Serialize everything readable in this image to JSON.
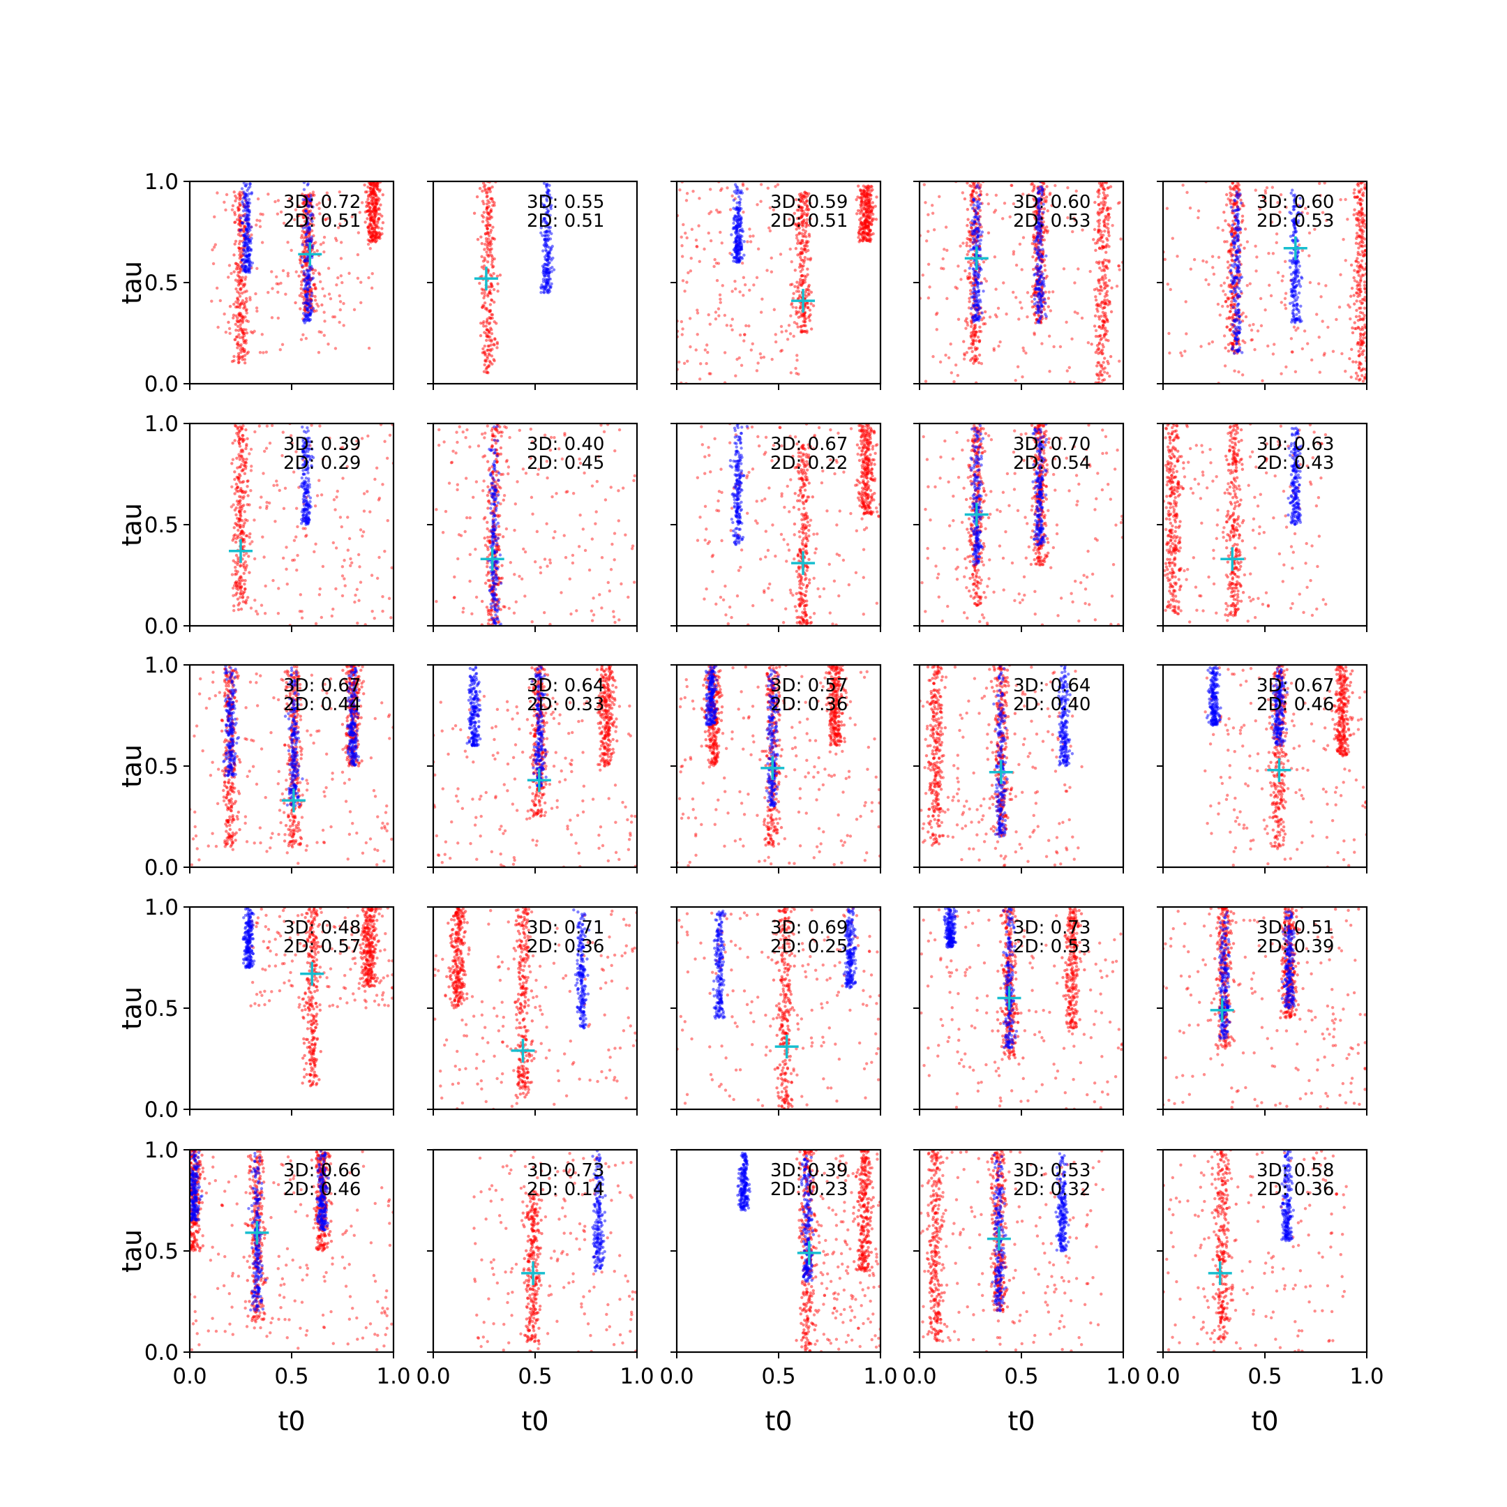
{
  "chart_data": {
    "type": "scatter",
    "layout": "5x5 grid of subplots, shared axes",
    "xlabel": "t0",
    "ylabel": "tau",
    "xlim": [
      0,
      1
    ],
    "ylim": [
      0,
      1
    ],
    "xticks": [
      "0.0",
      "0.5",
      "1.0"
    ],
    "yticks": [
      "0.0",
      "0.5",
      "1.0"
    ],
    "grid": false,
    "colors": {
      "red_points": "#ff0000",
      "blue_points": "#0000ff",
      "marker": "#17becf"
    },
    "panels": [
      {
        "score3d": "3D: 0.72",
        "score2d": "2D: 0.51",
        "marker": [
          0.59,
          0.64
        ],
        "red": [
          [
            0.58,
            0.35,
            0.95
          ],
          [
            0.25,
            0.1,
            0.95
          ],
          [
            0.9,
            0.7,
            1.0
          ]
        ],
        "blue": [
          [
            0.28,
            0.55,
            1.0
          ],
          [
            0.58,
            0.3,
            1.0
          ]
        ],
        "scatter_red": [
          [
            0.1,
            0.9,
            0.15,
            0.95
          ]
        ]
      },
      {
        "score3d": "3D: 0.55",
        "score2d": "2D: 0.51",
        "marker": [
          0.26,
          0.52
        ],
        "red": [
          [
            0.27,
            0.05,
            1.0
          ]
        ],
        "blue": [
          [
            0.56,
            0.45,
            1.0
          ]
        ],
        "scatter_red": []
      },
      {
        "score3d": "3D: 0.59",
        "score2d": "2D: 0.51",
        "marker": [
          0.62,
          0.41
        ],
        "red": [
          [
            0.62,
            0.25,
            0.95
          ],
          [
            0.93,
            0.7,
            0.98
          ]
        ],
        "blue": [
          [
            0.3,
            0.6,
            1.0
          ]
        ],
        "scatter_red": [
          [
            0.0,
            0.6,
            0.0,
            1.0
          ]
        ]
      },
      {
        "score3d": "3D: 0.60",
        "score2d": "2D: 0.53",
        "marker": [
          0.28,
          0.62
        ],
        "red": [
          [
            0.27,
            0.1,
            1.0
          ],
          [
            0.59,
            0.3,
            1.0
          ],
          [
            0.9,
            0.0,
            1.0
          ]
        ],
        "blue": [
          [
            0.28,
            0.3,
            1.0
          ],
          [
            0.59,
            0.3,
            1.0
          ]
        ],
        "scatter_red": [
          [
            0.0,
            1.0,
            0.0,
            1.0
          ]
        ]
      },
      {
        "score3d": "3D: 0.60",
        "score2d": "2D: 0.53",
        "marker": [
          0.65,
          0.67
        ],
        "red": [
          [
            0.35,
            0.15,
            1.0
          ],
          [
            0.97,
            0.0,
            1.0
          ]
        ],
        "blue": [
          [
            0.36,
            0.15,
            1.0
          ],
          [
            0.65,
            0.3,
            1.0
          ]
        ],
        "scatter_red": [
          [
            0.0,
            1.0,
            0.0,
            1.0
          ]
        ]
      },
      {
        "score3d": "3D: 0.39",
        "score2d": "2D: 0.29",
        "marker": [
          0.25,
          0.37
        ],
        "red": [
          [
            0.25,
            0.08,
            1.0
          ]
        ],
        "blue": [
          [
            0.57,
            0.5,
            1.0
          ]
        ],
        "scatter_red": [
          [
            0.2,
            1.0,
            0.0,
            1.0
          ]
        ]
      },
      {
        "score3d": "3D: 0.40",
        "score2d": "2D: 0.45",
        "marker": [
          0.29,
          0.33
        ],
        "red": [
          [
            0.3,
            0.0,
            1.0
          ]
        ],
        "blue": [
          [
            0.3,
            0.0,
            1.0
          ]
        ],
        "scatter_red": [
          [
            0.0,
            1.0,
            0.0,
            1.0
          ]
        ]
      },
      {
        "score3d": "3D: 0.67",
        "score2d": "2D: 0.22",
        "marker": [
          0.62,
          0.31
        ],
        "red": [
          [
            0.62,
            0.0,
            0.9
          ],
          [
            0.93,
            0.55,
            1.0
          ]
        ],
        "blue": [
          [
            0.3,
            0.4,
            1.0
          ]
        ],
        "scatter_red": [
          [
            0.1,
            1.0,
            0.0,
            1.0
          ]
        ]
      },
      {
        "score3d": "3D: 0.70",
        "score2d": "2D: 0.54",
        "marker": [
          0.28,
          0.55
        ],
        "red": [
          [
            0.28,
            0.1,
            1.0
          ],
          [
            0.59,
            0.3,
            1.0
          ]
        ],
        "blue": [
          [
            0.28,
            0.3,
            1.0
          ],
          [
            0.59,
            0.4,
            1.0
          ]
        ],
        "scatter_red": [
          [
            0.0,
            1.0,
            0.0,
            1.0
          ]
        ]
      },
      {
        "score3d": "3D: 0.63",
        "score2d": "2D: 0.43",
        "marker": [
          0.34,
          0.33
        ],
        "red": [
          [
            0.35,
            0.05,
            1.0
          ],
          [
            0.05,
            0.05,
            1.0
          ]
        ],
        "blue": [
          [
            0.65,
            0.5,
            1.0
          ]
        ],
        "scatter_red": [
          [
            0.0,
            0.8,
            0.0,
            1.0
          ]
        ]
      },
      {
        "score3d": "3D: 0.67",
        "score2d": "2D: 0.44",
        "marker": [
          0.51,
          0.33
        ],
        "red": [
          [
            0.51,
            0.1,
            1.0
          ],
          [
            0.2,
            0.1,
            1.0
          ],
          [
            0.8,
            0.5,
            1.0
          ]
        ],
        "blue": [
          [
            0.2,
            0.45,
            1.0
          ],
          [
            0.51,
            0.3,
            1.0
          ],
          [
            0.8,
            0.5,
            1.0
          ]
        ],
        "scatter_red": [
          [
            0.0,
            1.0,
            0.0,
            1.0
          ]
        ]
      },
      {
        "score3d": "3D: 0.64",
        "score2d": "2D: 0.33",
        "marker": [
          0.52,
          0.43
        ],
        "red": [
          [
            0.52,
            0.25,
            1.0
          ],
          [
            0.85,
            0.5,
            1.0
          ]
        ],
        "blue": [
          [
            0.2,
            0.6,
            1.0
          ],
          [
            0.52,
            0.4,
            1.0
          ]
        ],
        "scatter_red": [
          [
            0.0,
            1.0,
            0.0,
            0.85
          ]
        ]
      },
      {
        "score3d": "3D: 0.57",
        "score2d": "2D: 0.36",
        "marker": [
          0.47,
          0.49
        ],
        "red": [
          [
            0.47,
            0.1,
            1.0
          ],
          [
            0.18,
            0.5,
            1.0
          ],
          [
            0.78,
            0.6,
            1.0
          ]
        ],
        "blue": [
          [
            0.17,
            0.7,
            1.0
          ],
          [
            0.47,
            0.3,
            1.0
          ]
        ],
        "scatter_red": [
          [
            0.0,
            1.0,
            0.0,
            1.0
          ]
        ]
      },
      {
        "score3d": "3D: 0.64",
        "score2d": "2D: 0.40",
        "marker": [
          0.4,
          0.47
        ],
        "red": [
          [
            0.08,
            0.1,
            1.0
          ],
          [
            0.4,
            0.15,
            1.0
          ]
        ],
        "blue": [
          [
            0.4,
            0.15,
            1.0
          ],
          [
            0.71,
            0.5,
            1.0
          ]
        ],
        "scatter_red": [
          [
            0.0,
            0.8,
            0.0,
            1.0
          ]
        ]
      },
      {
        "score3d": "3D: 0.67",
        "score2d": "2D: 0.46",
        "marker": [
          0.57,
          0.48
        ],
        "red": [
          [
            0.57,
            0.1,
            1.0
          ],
          [
            0.88,
            0.55,
            1.0
          ]
        ],
        "blue": [
          [
            0.57,
            0.6,
            1.0
          ],
          [
            0.25,
            0.7,
            1.0
          ]
        ],
        "scatter_red": [
          [
            0.2,
            1.0,
            0.0,
            1.0
          ]
        ]
      },
      {
        "score3d": "3D: 0.48",
        "score2d": "2D: 0.57",
        "marker": [
          0.6,
          0.67
        ],
        "red": [
          [
            0.6,
            0.1,
            1.0
          ],
          [
            0.88,
            0.6,
            1.0
          ]
        ],
        "blue": [
          [
            0.29,
            0.7,
            1.0
          ]
        ],
        "scatter_red": [
          [
            0.3,
            1.0,
            0.5,
            1.0
          ]
        ]
      },
      {
        "score3d": "3D: 0.71",
        "score2d": "2D: 0.36",
        "marker": [
          0.44,
          0.29
        ],
        "red": [
          [
            0.44,
            0.05,
            1.0
          ],
          [
            0.12,
            0.5,
            1.0
          ]
        ],
        "blue": [
          [
            0.73,
            0.4,
            1.0
          ]
        ],
        "scatter_red": [
          [
            0.0,
            1.0,
            0.0,
            1.0
          ]
        ]
      },
      {
        "score3d": "3D: 0.69",
        "score2d": "2D: 0.25",
        "marker": [
          0.54,
          0.31
        ],
        "red": [
          [
            0.53,
            0.0,
            1.0
          ]
        ],
        "blue": [
          [
            0.21,
            0.45,
            1.0
          ],
          [
            0.85,
            0.6,
            1.0
          ]
        ],
        "scatter_red": [
          [
            0.0,
            1.0,
            0.0,
            1.0
          ]
        ]
      },
      {
        "score3d": "3D: 0.73",
        "score2d": "2D: 0.53",
        "marker": [
          0.44,
          0.55
        ],
        "red": [
          [
            0.44,
            0.25,
            1.0
          ],
          [
            0.75,
            0.4,
            1.0
          ]
        ],
        "blue": [
          [
            0.44,
            0.3,
            1.0
          ],
          [
            0.15,
            0.8,
            1.0
          ]
        ],
        "scatter_red": [
          [
            0.0,
            1.0,
            0.0,
            1.0
          ]
        ]
      },
      {
        "score3d": "3D: 0.51",
        "score2d": "2D: 0.39",
        "marker": [
          0.29,
          0.49
        ],
        "red": [
          [
            0.3,
            0.3,
            1.0
          ],
          [
            0.62,
            0.45,
            1.0
          ]
        ],
        "blue": [
          [
            0.3,
            0.35,
            1.0
          ],
          [
            0.62,
            0.5,
            1.0
          ]
        ],
        "scatter_red": [
          [
            0.0,
            1.0,
            0.0,
            1.0
          ]
        ]
      },
      {
        "score3d": "3D: 0.66",
        "score2d": "2D: 0.46",
        "marker": [
          0.33,
          0.59
        ],
        "red": [
          [
            0.33,
            0.15,
            1.0
          ],
          [
            0.65,
            0.5,
            1.0
          ],
          [
            0.02,
            0.5,
            1.0
          ]
        ],
        "blue": [
          [
            0.02,
            0.65,
            1.0
          ],
          [
            0.33,
            0.2,
            1.0
          ],
          [
            0.65,
            0.6,
            1.0
          ]
        ],
        "scatter_red": [
          [
            0.0,
            1.0,
            0.0,
            1.0
          ]
        ]
      },
      {
        "score3d": "3D: 0.73",
        "score2d": "2D: 0.14",
        "marker": [
          0.49,
          0.39
        ],
        "red": [
          [
            0.49,
            0.05,
            0.8
          ]
        ],
        "blue": [
          [
            0.81,
            0.4,
            1.0
          ]
        ],
        "scatter_red": [
          [
            0.2,
            1.0,
            0.0,
            1.0
          ]
        ]
      },
      {
        "score3d": "3D: 0.39",
        "score2d": "2D: 0.23",
        "marker": [
          0.65,
          0.49
        ],
        "red": [
          [
            0.64,
            0.0,
            1.0
          ],
          [
            0.92,
            0.4,
            1.0
          ]
        ],
        "blue": [
          [
            0.64,
            0.35,
            1.0
          ],
          [
            0.33,
            0.7,
            1.0
          ]
        ],
        "scatter_red": [
          [
            0.6,
            1.0,
            0.0,
            1.0
          ]
        ]
      },
      {
        "score3d": "3D: 0.53",
        "score2d": "2D: 0.32",
        "marker": [
          0.39,
          0.56
        ],
        "red": [
          [
            0.08,
            0.05,
            1.0
          ],
          [
            0.39,
            0.2,
            1.0
          ]
        ],
        "blue": [
          [
            0.39,
            0.2,
            1.0
          ],
          [
            0.7,
            0.5,
            1.0
          ]
        ],
        "scatter_red": [
          [
            0.0,
            0.9,
            0.0,
            1.0
          ]
        ]
      },
      {
        "score3d": "3D: 0.58",
        "score2d": "2D: 0.36",
        "marker": [
          0.28,
          0.39
        ],
        "red": [
          [
            0.29,
            0.05,
            1.0
          ]
        ],
        "blue": [
          [
            0.61,
            0.55,
            1.0
          ]
        ],
        "scatter_red": [
          [
            0.0,
            0.9,
            0.0,
            1.0
          ]
        ]
      }
    ]
  }
}
